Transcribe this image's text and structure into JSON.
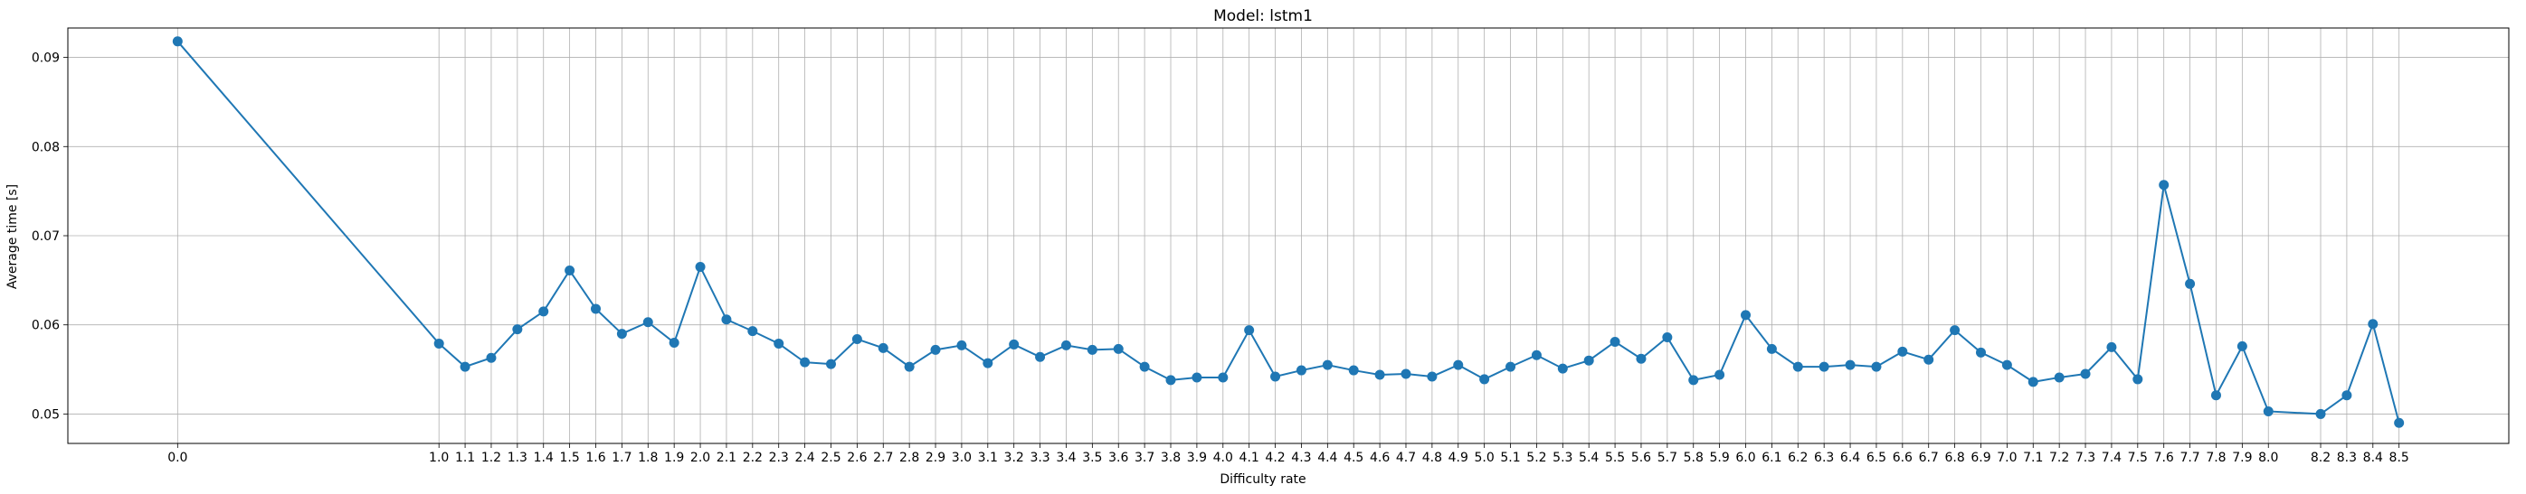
{
  "chart_data": {
    "type": "line",
    "title": "Model: lstm1",
    "xlabel": "Difficulty rate",
    "ylabel": "Average time [s]",
    "xlim": [
      -0.42,
      8.92
    ],
    "ylim": [
      0.0467,
      0.0933
    ],
    "grid": true,
    "color": "#1f77b4",
    "yticks": [
      0.05,
      0.06,
      0.07,
      0.08,
      0.09
    ],
    "ytick_labels": [
      "0.05",
      "0.06",
      "0.07",
      "0.08",
      "0.09"
    ],
    "x": [
      0.0,
      1.0,
      1.1,
      1.2,
      1.3,
      1.4,
      1.5,
      1.6,
      1.7,
      1.8,
      1.9,
      2.0,
      2.1,
      2.2,
      2.3,
      2.4,
      2.5,
      2.6,
      2.7,
      2.8,
      2.9,
      3.0,
      3.1,
      3.2,
      3.3,
      3.4,
      3.5,
      3.6,
      3.7,
      3.8,
      3.9,
      4.0,
      4.1,
      4.2,
      4.3,
      4.4,
      4.5,
      4.6,
      4.7,
      4.8,
      4.9,
      5.0,
      5.1,
      5.2,
      5.3,
      5.4,
      5.5,
      5.6,
      5.7,
      5.8,
      5.9,
      6.0,
      6.1,
      6.2,
      6.3,
      6.4,
      6.5,
      6.6,
      6.7,
      6.8,
      6.9,
      7.0,
      7.1,
      7.2,
      7.3,
      7.4,
      7.5,
      7.6,
      7.7,
      7.8,
      7.9,
      8.0,
      8.2,
      8.3,
      8.4,
      8.5
    ],
    "x_labels": [
      "0.0",
      "1.0",
      "1.1",
      "1.2",
      "1.3",
      "1.4",
      "1.5",
      "1.6",
      "1.7",
      "1.8",
      "1.9",
      "2.0",
      "2.1",
      "2.2",
      "2.3",
      "2.4",
      "2.5",
      "2.6",
      "2.7",
      "2.8",
      "2.9",
      "3.0",
      "3.1",
      "3.2",
      "3.3",
      "3.4",
      "3.5",
      "3.6",
      "3.7",
      "3.8",
      "3.9",
      "4.0",
      "4.1",
      "4.2",
      "4.3",
      "4.4",
      "4.5",
      "4.6",
      "4.7",
      "4.8",
      "4.9",
      "5.0",
      "5.1",
      "5.2",
      "5.3",
      "5.4",
      "5.5",
      "5.6",
      "5.7",
      "5.8",
      "5.9",
      "6.0",
      "6.1",
      "6.2",
      "6.3",
      "6.4",
      "6.5",
      "6.6",
      "6.7",
      "6.8",
      "6.9",
      "7.0",
      "7.1",
      "7.2",
      "7.3",
      "7.4",
      "7.5",
      "7.6",
      "7.7",
      "7.8",
      "7.9",
      "8.0",
      "8.2",
      "8.3",
      "8.4",
      "8.5"
    ],
    "y": [
      0.0918,
      0.0579,
      0.0553,
      0.0563,
      0.0595,
      0.0615,
      0.0661,
      0.0618,
      0.059,
      0.0603,
      0.058,
      0.0665,
      0.0606,
      0.0593,
      0.0579,
      0.0558,
      0.0556,
      0.0584,
      0.0574,
      0.0553,
      0.0572,
      0.0577,
      0.0557,
      0.0578,
      0.0564,
      0.0577,
      0.0572,
      0.0573,
      0.0553,
      0.0538,
      0.0541,
      0.0541,
      0.0594,
      0.0542,
      0.0549,
      0.0555,
      0.0549,
      0.0544,
      0.0545,
      0.0542,
      0.0555,
      0.0539,
      0.0553,
      0.0566,
      0.0551,
      0.056,
      0.0581,
      0.0562,
      0.0586,
      0.0538,
      0.0544,
      0.0611,
      0.0573,
      0.0553,
      0.0553,
      0.0555,
      0.0553,
      0.057,
      0.0561,
      0.0594,
      0.0569,
      0.0555,
      0.0536,
      0.0541,
      0.0545,
      0.0575,
      0.0539,
      0.0757,
      0.0646,
      0.0521,
      0.0576,
      0.0503,
      0.05,
      0.0521,
      0.0601,
      0.049
    ]
  }
}
